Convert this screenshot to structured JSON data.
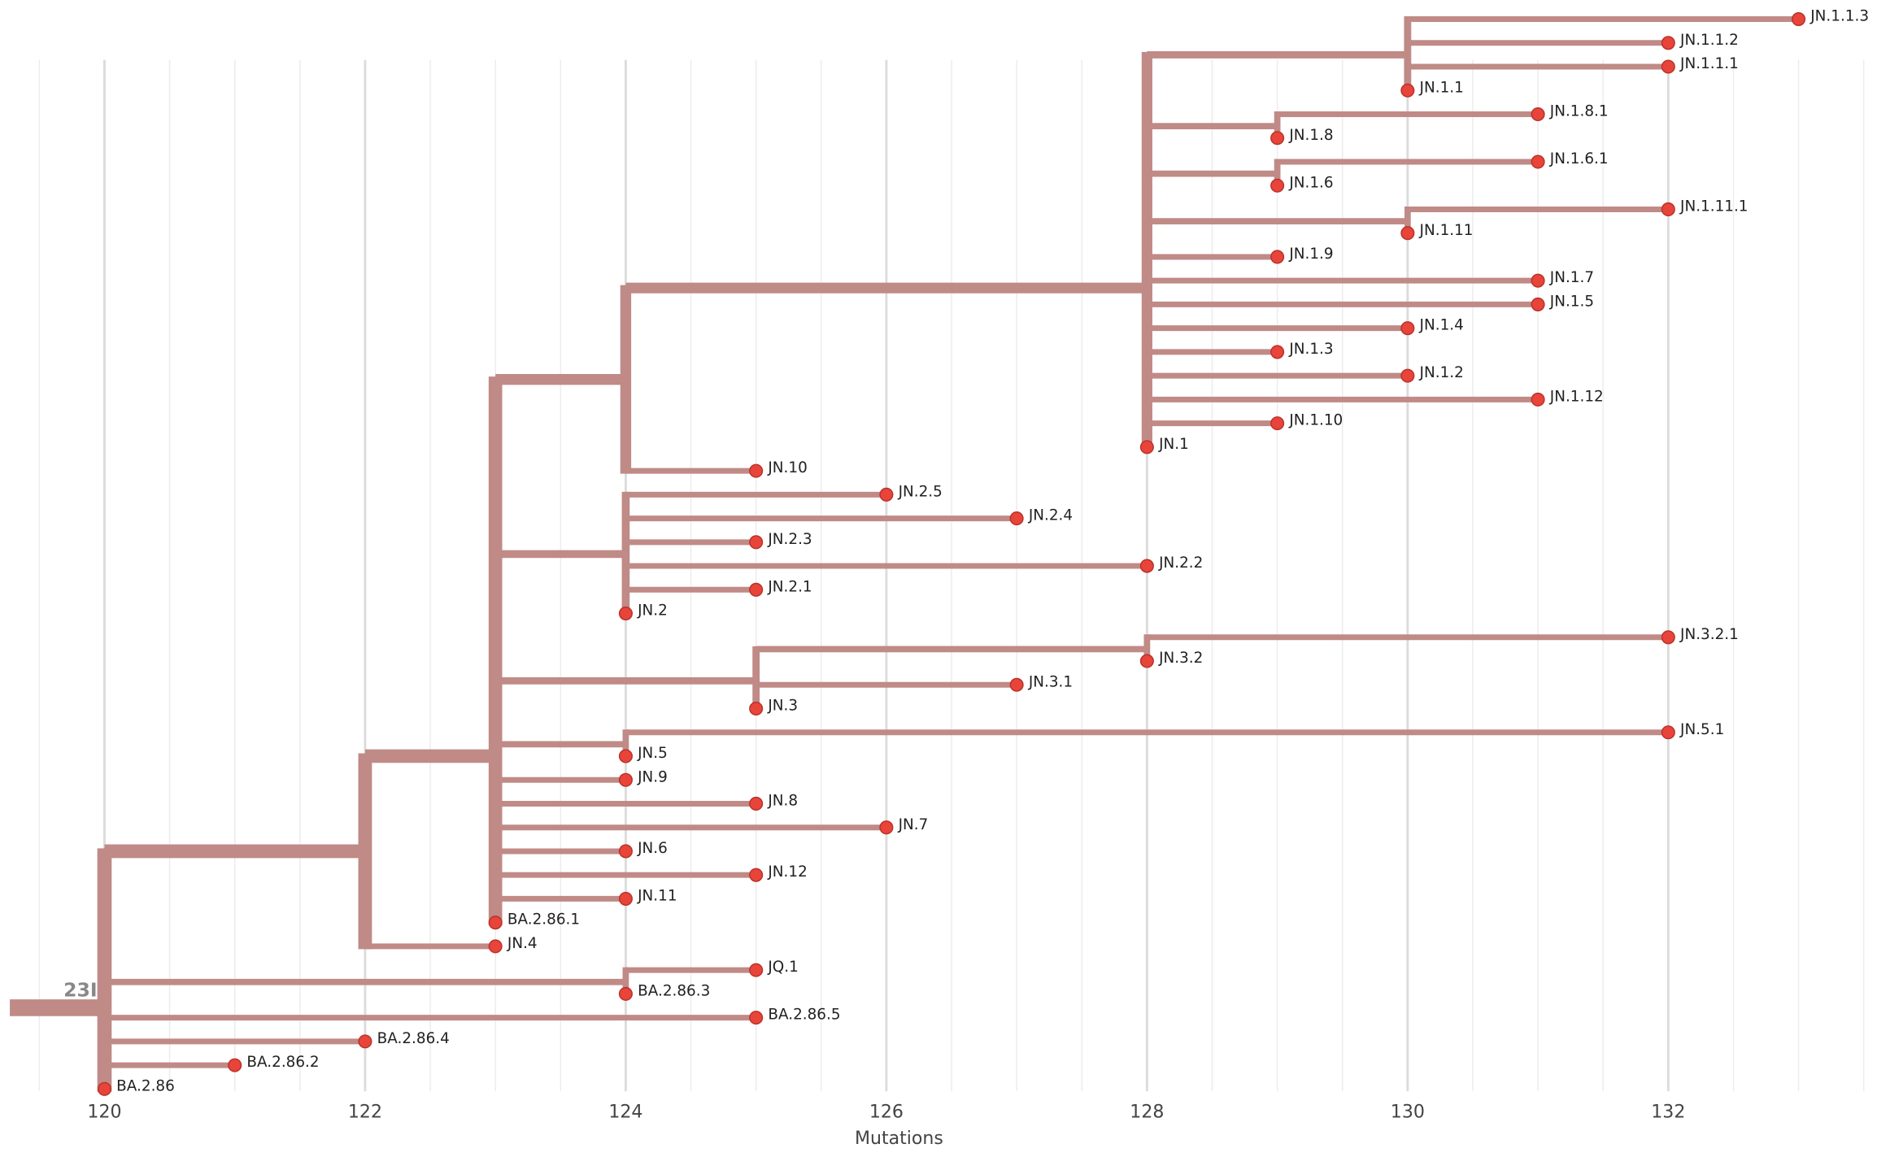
{
  "chart_data": {
    "type": "tree",
    "x_label": "Mutations",
    "xlim": [
      119.2,
      133.6
    ],
    "xticks": [
      120,
      122,
      124,
      126,
      128,
      130,
      132
    ],
    "xticks_minor": [
      119.5,
      120.5,
      121,
      121.5,
      122.5,
      123,
      123.5,
      124.5,
      125,
      125.5,
      126.5,
      127,
      127.5,
      128.5,
      129,
      129.5,
      130.5,
      131,
      131.5,
      132.5,
      133,
      133.5
    ],
    "grid": true,
    "branch_color": "#c08a87",
    "tip_color": "#e8443a",
    "tree": {
      "label": "23I",
      "x": 120,
      "children": [
        {
          "x": 122,
          "children": [
            {
              "x": 123,
              "children": [
                {
                  "x": 124,
                  "children": [
                    {
                      "x": 128,
                      "children": [
                        {
                          "x": 130,
                          "children": [
                            {
                              "label": "JN.1.1.3",
                              "x": 133
                            },
                            {
                              "label": "JN.1.1.2",
                              "x": 132
                            },
                            {
                              "label": "JN.1.1.1",
                              "x": 132
                            },
                            {
                              "label": "JN.1.1",
                              "x": 130
                            }
                          ]
                        },
                        {
                          "x": 129,
                          "children": [
                            {
                              "label": "JN.1.8.1",
                              "x": 131
                            },
                            {
                              "label": "JN.1.8",
                              "x": 129
                            }
                          ]
                        },
                        {
                          "x": 129,
                          "children": [
                            {
                              "label": "JN.1.6.1",
                              "x": 131
                            },
                            {
                              "label": "JN.1.6",
                              "x": 129
                            }
                          ]
                        },
                        {
                          "x": 130,
                          "children": [
                            {
                              "label": "JN.1.11.1",
                              "x": 132
                            },
                            {
                              "label": "JN.1.11",
                              "x": 130
                            }
                          ]
                        },
                        {
                          "label": "JN.1.9",
                          "x": 129
                        },
                        {
                          "label": "JN.1.7",
                          "x": 131
                        },
                        {
                          "label": "JN.1.5",
                          "x": 131
                        },
                        {
                          "label": "JN.1.4",
                          "x": 130
                        },
                        {
                          "label": "JN.1.3",
                          "x": 129
                        },
                        {
                          "label": "JN.1.2",
                          "x": 130
                        },
                        {
                          "label": "JN.1.12",
                          "x": 131
                        },
                        {
                          "label": "JN.1.10",
                          "x": 129
                        },
                        {
                          "label": "JN.1",
                          "x": 128
                        }
                      ]
                    },
                    {
                      "label": "JN.10",
                      "x": 125
                    }
                  ]
                },
                {
                  "x": 124,
                  "children": [
                    {
                      "label": "JN.2.5",
                      "x": 126
                    },
                    {
                      "label": "JN.2.4",
                      "x": 127
                    },
                    {
                      "label": "JN.2.3",
                      "x": 125
                    },
                    {
                      "label": "JN.2.2",
                      "x": 128
                    },
                    {
                      "label": "JN.2.1",
                      "x": 125
                    },
                    {
                      "label": "JN.2",
                      "x": 124
                    }
                  ]
                },
                {
                  "x": 125,
                  "children": [
                    {
                      "x": 128,
                      "children": [
                        {
                          "label": "JN.3.2.1",
                          "x": 132
                        },
                        {
                          "label": "JN.3.2",
                          "x": 128
                        }
                      ]
                    },
                    {
                      "label": "JN.3.1",
                      "x": 127
                    },
                    {
                      "label": "JN.3",
                      "x": 125
                    }
                  ]
                },
                {
                  "x": 124,
                  "children": [
                    {
                      "label": "JN.5.1",
                      "x": 132
                    },
                    {
                      "label": "JN.5",
                      "x": 124
                    }
                  ]
                },
                {
                  "label": "JN.9",
                  "x": 124
                },
                {
                  "label": "JN.8",
                  "x": 125
                },
                {
                  "label": "JN.7",
                  "x": 126
                },
                {
                  "label": "JN.6",
                  "x": 124
                },
                {
                  "label": "JN.12",
                  "x": 125
                },
                {
                  "label": "JN.11",
                  "x": 124
                },
                {
                  "label": "BA.2.86.1",
                  "x": 123
                }
              ]
            },
            {
              "label": "JN.4",
              "x": 123
            }
          ]
        },
        {
          "x": 124,
          "children": [
            {
              "label": "JQ.1",
              "x": 125
            },
            {
              "label": "BA.2.86.3",
              "x": 124
            }
          ]
        },
        {
          "label": "BA.2.86.5",
          "x": 125
        },
        {
          "label": "BA.2.86.4",
          "x": 122
        },
        {
          "label": "BA.2.86.2",
          "x": 121
        },
        {
          "label": "BA.2.86",
          "x": 120
        }
      ]
    }
  }
}
